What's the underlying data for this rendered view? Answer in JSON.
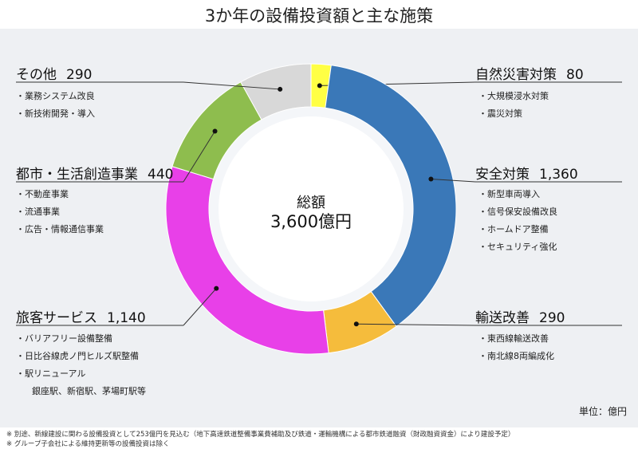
{
  "title": "3か年の設備投資額と主な施策",
  "unit_label": "単位：億円",
  "center": {
    "label": "総額",
    "value": "3,600億円"
  },
  "notes": [
    "※ 別途、新線建設に関わる設備投資として253億円を見込む（地下高速鉄道整備事業費補助及び鉄道・運輸機構による都市鉄道融資（財政融資資金）により建設予定）",
    "※ グループ子会社による維持更新等の設備投資は除く"
  ],
  "chart_data": {
    "type": "pie",
    "title": "3か年の設備投資額と主な施策",
    "unit": "億円",
    "total": 3600,
    "slices": [
      {
        "name": "自然災害対策",
        "value": 80,
        "value_label": "80",
        "color": "#ffff44",
        "items": [
          "大規模浸水対策",
          "震災対策"
        ]
      },
      {
        "name": "安全対策",
        "value": 1360,
        "value_label": "1,360",
        "color": "#3a78b8",
        "items": [
          "新型車両導入",
          "信号保安設備改良",
          "ホームドア整備",
          "セキュリティ強化"
        ]
      },
      {
        "name": "輸送改善",
        "value": 290,
        "value_label": "290",
        "color": "#f5bc3c",
        "items": [
          "東西線輸送改善",
          "南北線8両編成化"
        ]
      },
      {
        "name": "旅客サービス",
        "value": 1140,
        "value_label": "1,140",
        "color": "#e840e8",
        "items": [
          "バリアフリー設備整備",
          "日比谷線虎ノ門ヒルズ駅整備",
          "駅リニューアル",
          "銀座駅、新宿駅、茅場町駅等"
        ]
      },
      {
        "name": "都市・生活創造事業",
        "value": 440,
        "value_label": "440",
        "color": "#8ebd4e",
        "items": [
          "不動産事業",
          "流通事業",
          "広告・情報通信事業"
        ]
      },
      {
        "name": "その他",
        "value": 290,
        "value_label": "290",
        "color": "#d8d8d8",
        "items": [
          "業務システム改良",
          "新技術開発・導入"
        ]
      }
    ]
  }
}
